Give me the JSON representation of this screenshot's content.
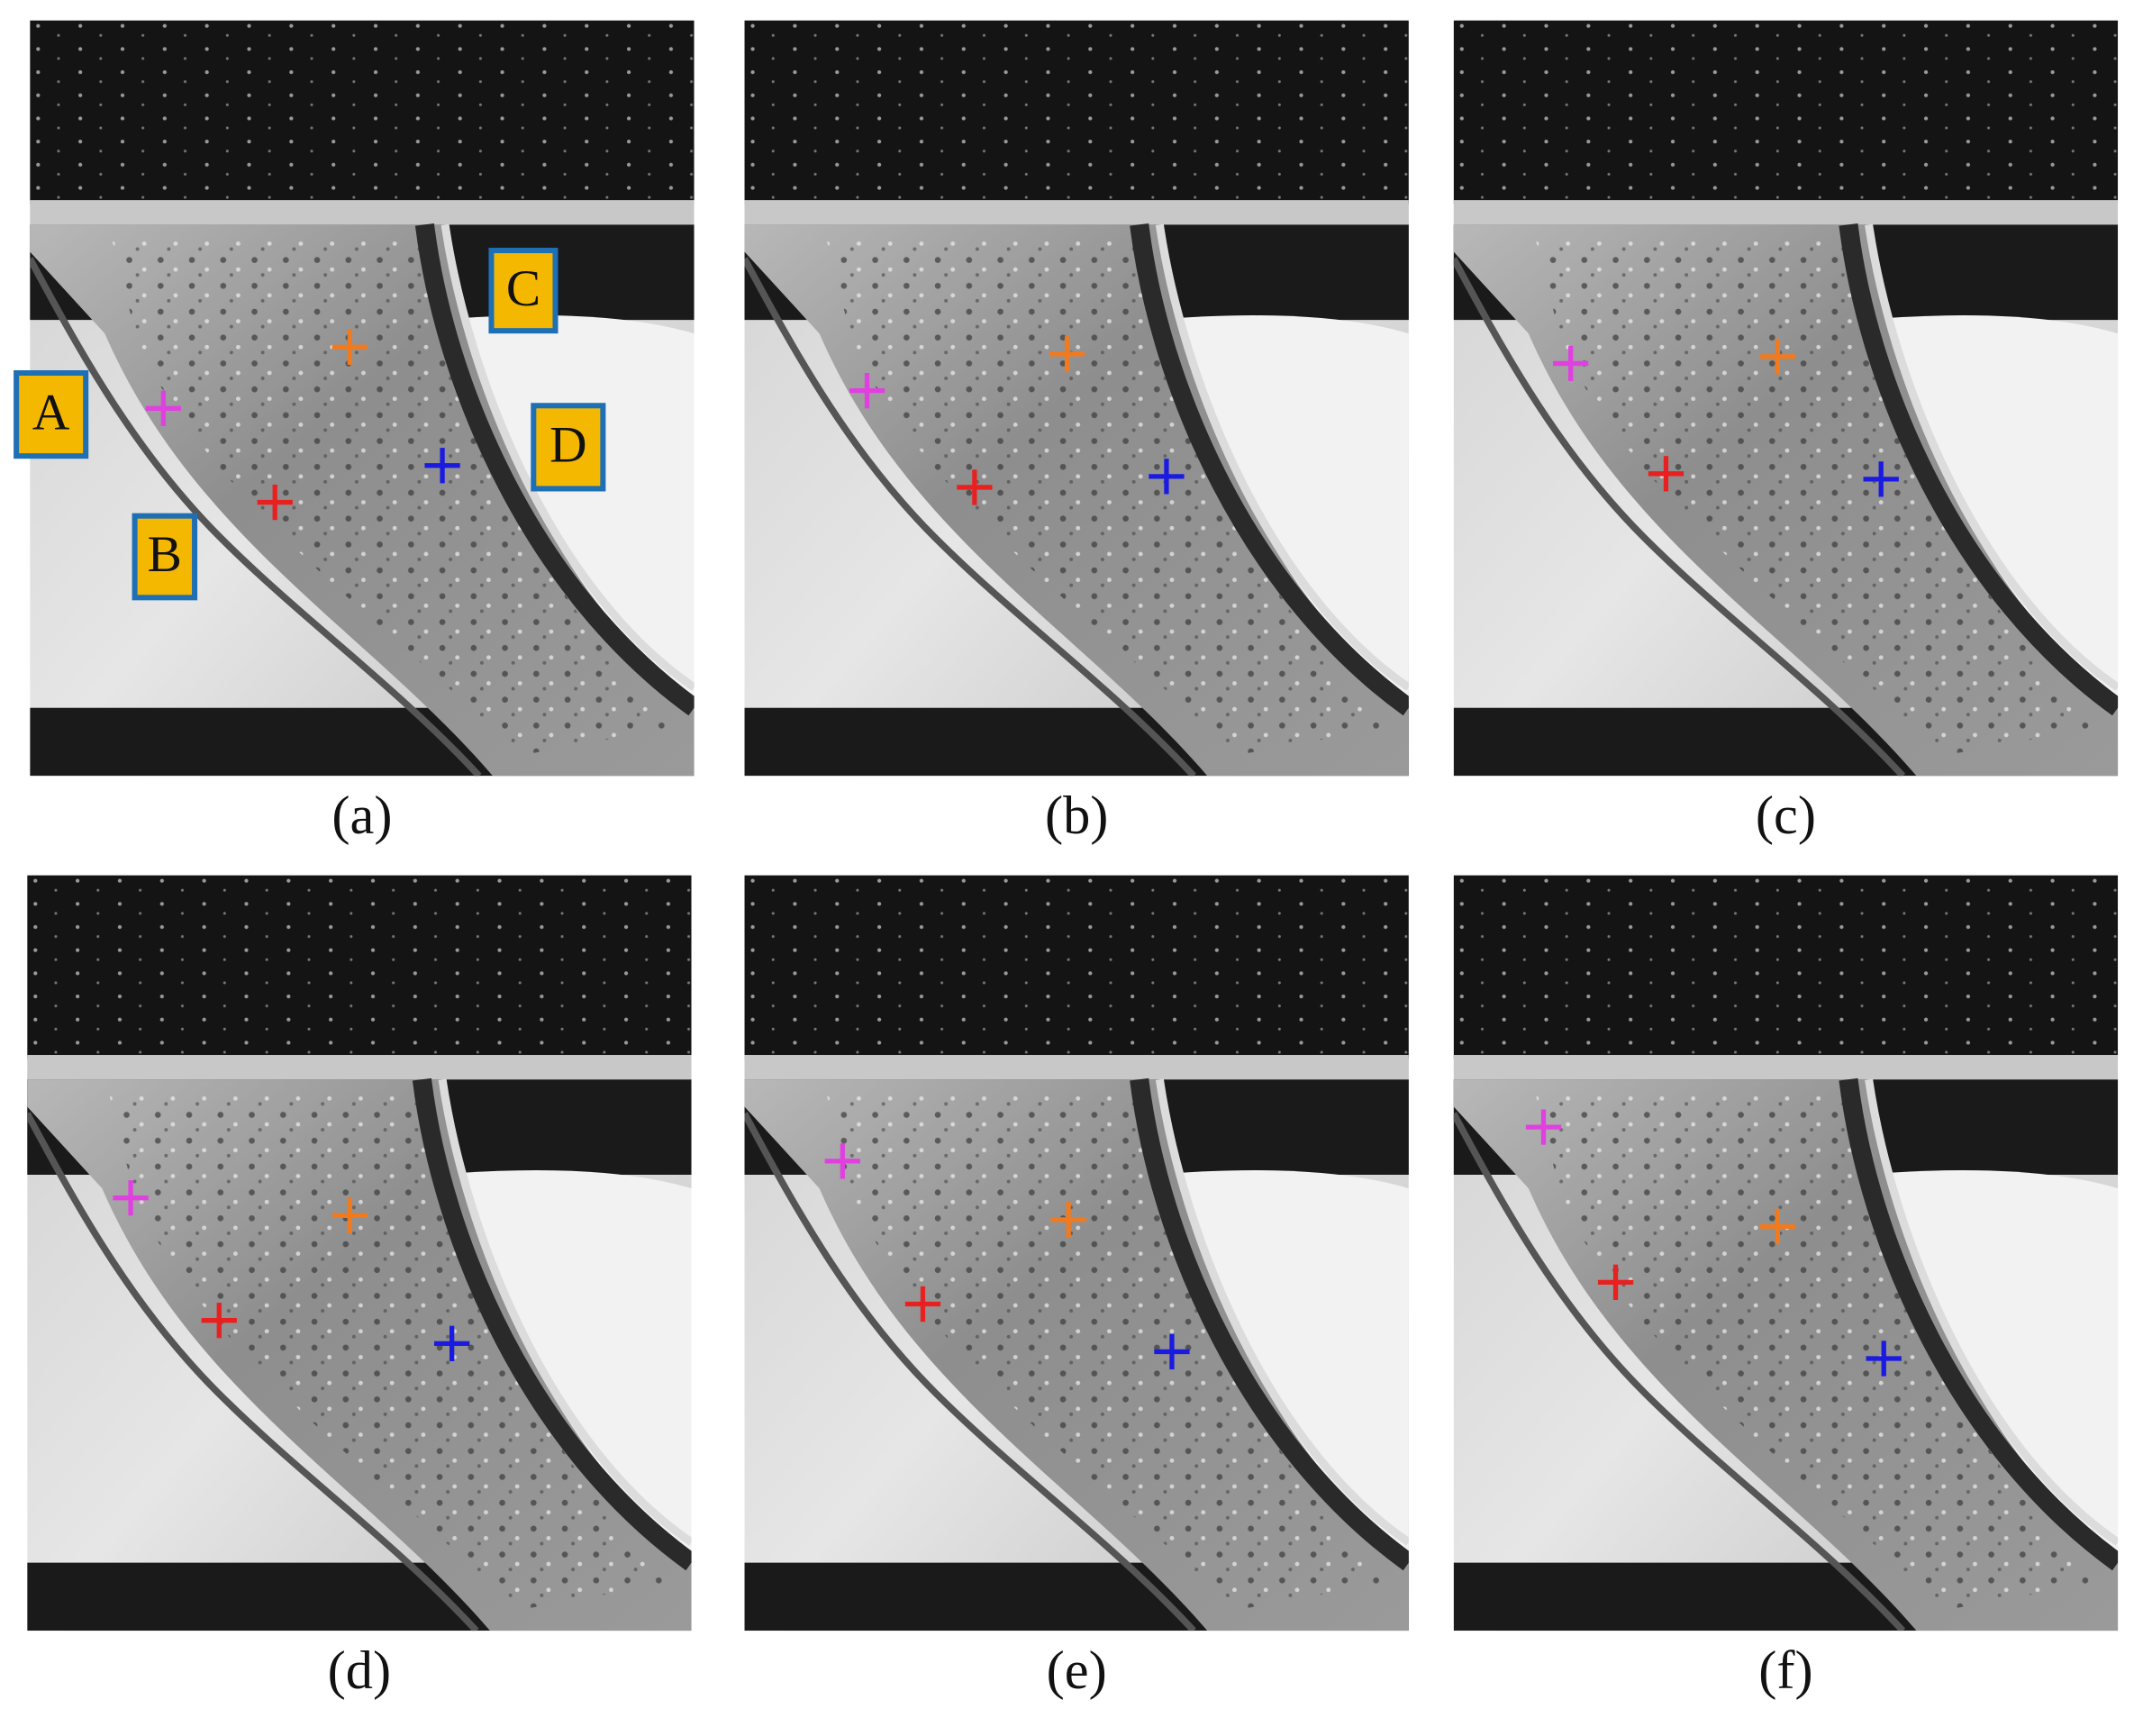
{
  "panels": [
    {
      "label": "(a)"
    },
    {
      "label": "(b)"
    },
    {
      "label": "(c)"
    },
    {
      "label": "(d)"
    },
    {
      "label": "(e)"
    },
    {
      "label": "(f)"
    }
  ],
  "annotations": [
    "A",
    "B",
    "C",
    "D"
  ]
}
